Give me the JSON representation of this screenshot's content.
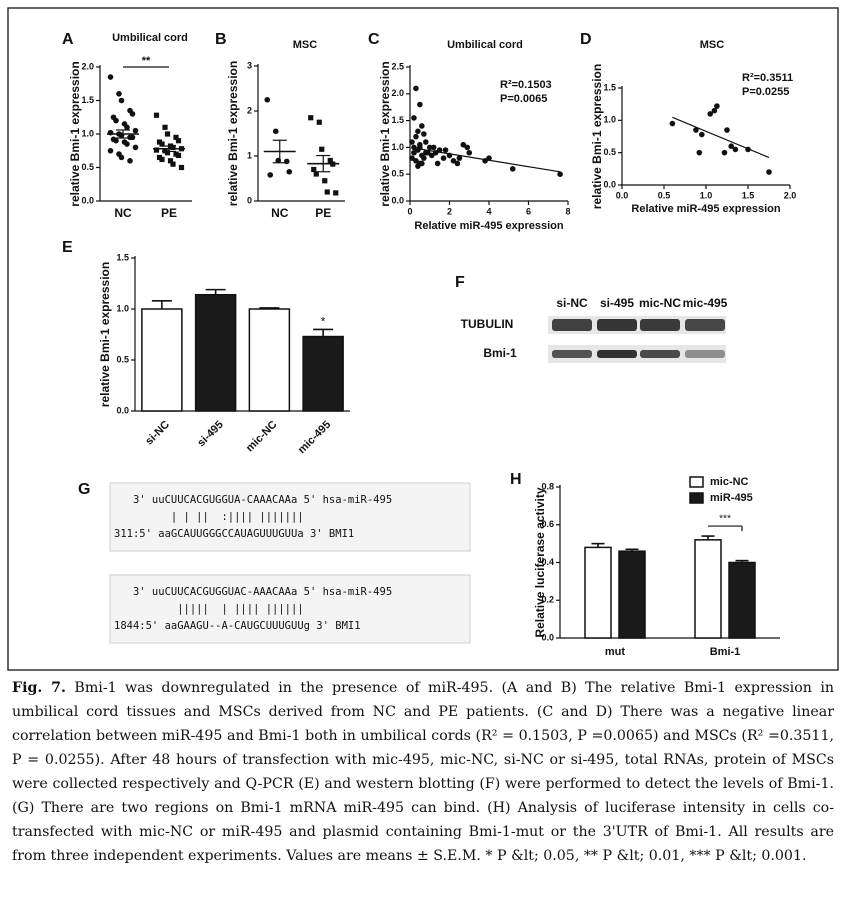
{
  "chart_data": [
    {
      "type": "dotplot",
      "panel": "A",
      "title": "Umbilical cord",
      "ylabel": "relative Bmi-1 expression",
      "categories": [
        "NC",
        "PE"
      ],
      "markers": [
        "circle",
        "square"
      ],
      "points": [
        [
          1.85,
          1.6,
          1.5,
          1.35,
          1.3,
          1.25,
          1.2,
          1.15,
          1.1,
          1.05,
          1.02,
          1.0,
          0.98,
          0.95,
          0.95,
          0.92,
          0.9,
          0.88,
          0.85,
          0.8,
          0.75,
          0.7,
          0.65,
          0.6
        ],
        [
          1.28,
          1.1,
          1.0,
          0.95,
          0.9,
          0.88,
          0.85,
          0.82,
          0.8,
          0.78,
          0.76,
          0.75,
          0.72,
          0.7,
          0.68,
          0.65,
          0.62,
          0.6,
          0.55,
          0.5
        ]
      ],
      "mean": [
        1.0,
        0.78
      ],
      "sem": [
        0.06,
        0.04
      ],
      "annotation": "**",
      "ylim": [
        0,
        2
      ],
      "yticks": [
        {
          "value": 0,
          "label": "0.0"
        },
        {
          "value": 0.5,
          "label": "0.5"
        },
        {
          "value": 1,
          "label": "1.0"
        },
        {
          "value": 1.5,
          "label": "1.5"
        },
        {
          "value": 2,
          "label": "2.0"
        }
      ]
    },
    {
      "type": "dotplot",
      "panel": "B",
      "title": "MSC",
      "ylabel": "relative Bmi-1 expression",
      "categories": [
        "NC",
        "PE"
      ],
      "markers": [
        "circle",
        "square"
      ],
      "points": [
        [
          2.25,
          1.55,
          0.9,
          0.88,
          0.65,
          0.58
        ],
        [
          1.85,
          1.75,
          1.15,
          0.9,
          0.82,
          0.7,
          0.6,
          0.45,
          0.2,
          0.18
        ]
      ],
      "mean": [
        1.1,
        0.83
      ],
      "sem": [
        0.25,
        0.18
      ],
      "ylim": [
        0,
        3
      ],
      "yticks": [
        0,
        1,
        2,
        3
      ]
    },
    {
      "type": "scatter",
      "panel": "C",
      "title": "Umbilical cord",
      "ylabel": "relative Bmi-1 expression",
      "xlabel": "Relative miR-495 expression",
      "annotations": [
        "R²=0.1503",
        "P=0.0065"
      ],
      "x": [
        0.3,
        0.5,
        0.2,
        0.4,
        0.6,
        0.1,
        0.3,
        0.5,
        0.7,
        0.8,
        1.0,
        0.2,
        0.4,
        0.6,
        0.9,
        1.2,
        1.5,
        0.1,
        0.3,
        0.5,
        0.7,
        1.1,
        1.3,
        1.8,
        2.0,
        2.2,
        2.5,
        2.7,
        3.0,
        3.8,
        4.0,
        5.2,
        7.6,
        0.4,
        0.6,
        0.8,
        1.4,
        1.7,
        2.4,
        2.9,
        0.2,
        0.5
      ],
      "values": [
        2.1,
        1.8,
        1.55,
        1.3,
        1.4,
        1.1,
        1.2,
        1.0,
        1.25,
        1.1,
        1.0,
        0.9,
        0.95,
        0.85,
        0.9,
        1.0,
        0.95,
        0.8,
        0.75,
        0.7,
        0.8,
        0.85,
        0.9,
        0.95,
        0.85,
        0.75,
        0.8,
        1.05,
        0.9,
        0.75,
        0.8,
        0.6,
        0.5,
        0.65,
        0.7,
        0.9,
        0.7,
        0.8,
        0.7,
        1.0,
        1.0,
        1.05
      ],
      "fit": {
        "intercept": 1.0,
        "slope": -0.06
      },
      "xlim": [
        0,
        8
      ],
      "xticks": [
        0,
        2,
        4,
        6,
        8
      ],
      "ylim": [
        0,
        2.5
      ],
      "yticks": [
        {
          "value": 0,
          "label": "0.0"
        },
        {
          "value": 0.5,
          "label": "0.5"
        },
        {
          "value": 1,
          "label": "1.0"
        },
        {
          "value": 1.5,
          "label": "1.5"
        },
        {
          "value": 2,
          "label": "2.0"
        },
        {
          "value": 2.5,
          "label": "2.5"
        }
      ]
    },
    {
      "type": "scatter",
      "panel": "D",
      "title": "MSC",
      "ylabel": "relative Bmi-1 expression",
      "xlabel": "Relative miR-495 expression",
      "annotations": [
        "R²=0.3511",
        "P=0.0255"
      ],
      "x": [
        0.6,
        0.88,
        0.95,
        0.92,
        1.05,
        1.1,
        1.13,
        1.25,
        1.22,
        1.3,
        1.35,
        1.5,
        1.75
      ],
      "values": [
        0.95,
        0.85,
        0.78,
        0.5,
        1.1,
        1.15,
        1.22,
        0.85,
        0.5,
        0.6,
        0.55,
        0.55,
        0.2
      ],
      "fit": {
        "intercept": 1.37,
        "slope": -0.54
      },
      "xlim": [
        0,
        2
      ],
      "xticks": [
        {
          "value": 0,
          "label": "0.0"
        },
        {
          "value": 0.5,
          "label": "0.5"
        },
        {
          "value": 1,
          "label": "1.0"
        },
        {
          "value": 1.5,
          "label": "1.5"
        },
        {
          "value": 2,
          "label": "2.0"
        }
      ],
      "ylim": [
        0,
        1.5
      ],
      "yticks": [
        {
          "value": 0,
          "label": "0.0"
        },
        {
          "value": 0.5,
          "label": "0.5"
        },
        {
          "value": 1,
          "label": "1.0"
        },
        {
          "value": 1.5,
          "label": "1.5"
        }
      ]
    },
    {
      "type": "bar",
      "panel": "E",
      "ylabel": "relative Bmi-1  expression",
      "categories": [
        "si-NC",
        "si-495",
        "mic-NC",
        "mic-495"
      ],
      "values": [
        1.0,
        1.14,
        1.0,
        0.73
      ],
      "errors": [
        0.08,
        0.05,
        0.01,
        0.07
      ],
      "colors": [
        "#ffffff",
        "#1a1a1a",
        "#ffffff",
        "#1a1a1a"
      ],
      "annotations": [
        null,
        null,
        null,
        "*"
      ],
      "ylim": [
        0,
        1.5
      ],
      "yticks": [
        {
          "value": 0,
          "label": "0.0"
        },
        {
          "value": 0.5,
          "label": "0.5"
        },
        {
          "value": 1,
          "label": "1.0"
        },
        {
          "value": 1.5,
          "label": "1.5"
        }
      ]
    },
    {
      "type": "bar",
      "panel": "H",
      "ylabel": "Relative luciferase activity",
      "categories": [
        "mut",
        "Bmi-1"
      ],
      "series": [
        {
          "name": "mic-NC",
          "color": "#ffffff",
          "values": [
            0.48,
            0.52
          ],
          "errors": [
            0.02,
            0.02
          ]
        },
        {
          "name": "miR-495",
          "color": "#1a1a1a",
          "values": [
            0.46,
            0.4
          ],
          "errors": [
            0.01,
            0.01
          ]
        }
      ],
      "annotations": [
        null,
        "***"
      ],
      "ylim": [
        0,
        0.8
      ],
      "yticks": [
        {
          "value": 0,
          "label": "0.0"
        },
        {
          "value": 0.2,
          "label": "0.2"
        },
        {
          "value": 0.4,
          "label": "0.4"
        },
        {
          "value": 0.6,
          "label": "0.6"
        },
        {
          "value": 0.8,
          "label": "0.8"
        }
      ]
    }
  ],
  "blot": {
    "panel": "F",
    "lanes": [
      "si-NC",
      "si-495",
      "mic-NC",
      "mic-495"
    ],
    "rows": [
      "TUBULIN",
      "Bmi-1"
    ]
  },
  "alignment": {
    "panel": "G",
    "blocks": [
      [
        "   3' uuCUUCACGUGGUA-CAAACAAa 5' hsa-miR-495",
        "         | | ||  :|||| |||||||",
        "311:5' aaGCAUUGGGCCAUAGUUUGUUa 3' BMI1"
      ],
      [
        "   3' uuCUUCACGUGGUAC-AAACAAa 5' hsa-miR-495",
        "          |||||  | |||| ||||||",
        "1844:5' aaGAAGU--A-CAUGCUUUGUUg 3' BMI1"
      ]
    ]
  },
  "caption": {
    "label": "Fig. 7.",
    "text": "Bmi-1 was downregulated in the presence of miR-495. (A and B) The relative Bmi-1 expression in umbilical cord tissues and MSCs derived from NC and PE patients. (C and D) There was a negative linear correlation between miR-495 and Bmi-1 both in umbilical cords (R² = 0.1503, P =0.0065) and MSCs (R² =0.3511, P = 0.0255). After 48 hours of transfection with mic-495, mic-NC, si-NC or si-495, total RNAs, protein of MSCs were collected respectively and Q-PCR (E) and western blotting (F) were performed to detect the levels of Bmi-1. (G) There are two regions on Bmi-1 mRNA miR-495 can bind. (H) Analysis of luciferase intensity in cells co-transfected with mic-NC or miR-495 and plasmid containing Bmi-1-mut or the 3'UTR of Bmi-1. All results are from three independent experiments. Values are means ± S.E.M. * P &lt; 0.05, ** P &lt; 0.01, *** P &lt; 0.001."
  }
}
